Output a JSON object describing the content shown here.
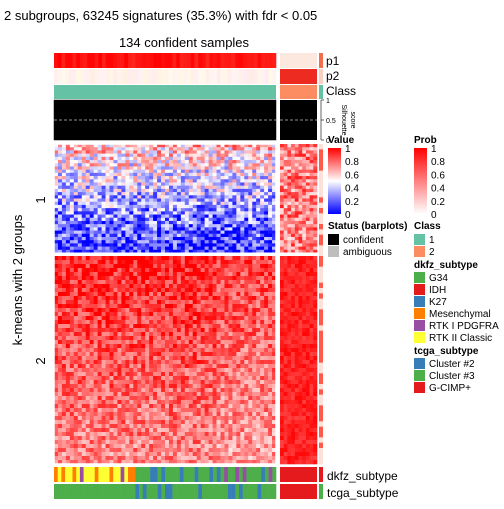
{
  "chart_data": {
    "type": "heatmap",
    "title": "2 subgroups, 63245 signatures (35.3%) with fdr < 0.05",
    "subtitle": "134 confident samples",
    "ylabel": "k-means with 2 groups",
    "row_groups": [
      "1",
      "2"
    ],
    "annotation_rows": [
      "p1",
      "p2",
      "Class"
    ],
    "silhouette": {
      "label": "Silhouette\nscore",
      "ticks": [
        "1",
        "0.5",
        "0"
      ],
      "threshold": 0.5
    },
    "bottom_tracks": [
      "dkfz_subtype",
      "tcga_subtype"
    ],
    "value_legend": {
      "title": "Value",
      "ticks": [
        "1",
        "0.8",
        "0.6",
        "0.4",
        "0.2",
        "0"
      ],
      "colors": [
        "#0000ff",
        "#ffffff",
        "#ff0000"
      ]
    },
    "prob_legend": {
      "title": "Prob",
      "ticks": [
        "1",
        "0.8",
        "0.6",
        "0.4",
        "0.2",
        "0"
      ],
      "colors": [
        "#ffffff",
        "#ff0000"
      ]
    },
    "status_legend": {
      "title": "Status (barplots)",
      "items": [
        {
          "label": "confident",
          "color": "#000000"
        },
        {
          "label": "ambiguous",
          "color": "#bebebe"
        }
      ]
    },
    "class_legend": {
      "title": "Class",
      "items": [
        {
          "label": "1",
          "color": "#66c2a5"
        },
        {
          "label": "2",
          "color": "#fc8d62"
        }
      ]
    },
    "dkfz_legend": {
      "title": "dkfz_subtype",
      "items": [
        {
          "label": "G34",
          "color": "#4daf4a"
        },
        {
          "label": "IDH",
          "color": "#e41a1c"
        },
        {
          "label": "K27",
          "color": "#377eb8"
        },
        {
          "label": "Mesenchymal",
          "color": "#ff7f00"
        },
        {
          "label": "RTK I PDGFRA",
          "color": "#984ea3"
        },
        {
          "label": "RTK II Classic",
          "color": "#ffff33"
        }
      ]
    },
    "tcga_legend": {
      "title": "tcga_subtype",
      "items": [
        {
          "label": "Cluster #2",
          "color": "#377eb8"
        },
        {
          "label": "Cluster #3",
          "color": "#4daf4a"
        },
        {
          "label": "G-CIMP+",
          "color": "#e41a1c"
        }
      ]
    },
    "column_groups": [
      {
        "class": "1",
        "fraction": 0.82
      },
      {
        "class": "2",
        "fraction": 0.15
      }
    ],
    "row_fractions": [
      0.37,
      0.63
    ]
  }
}
